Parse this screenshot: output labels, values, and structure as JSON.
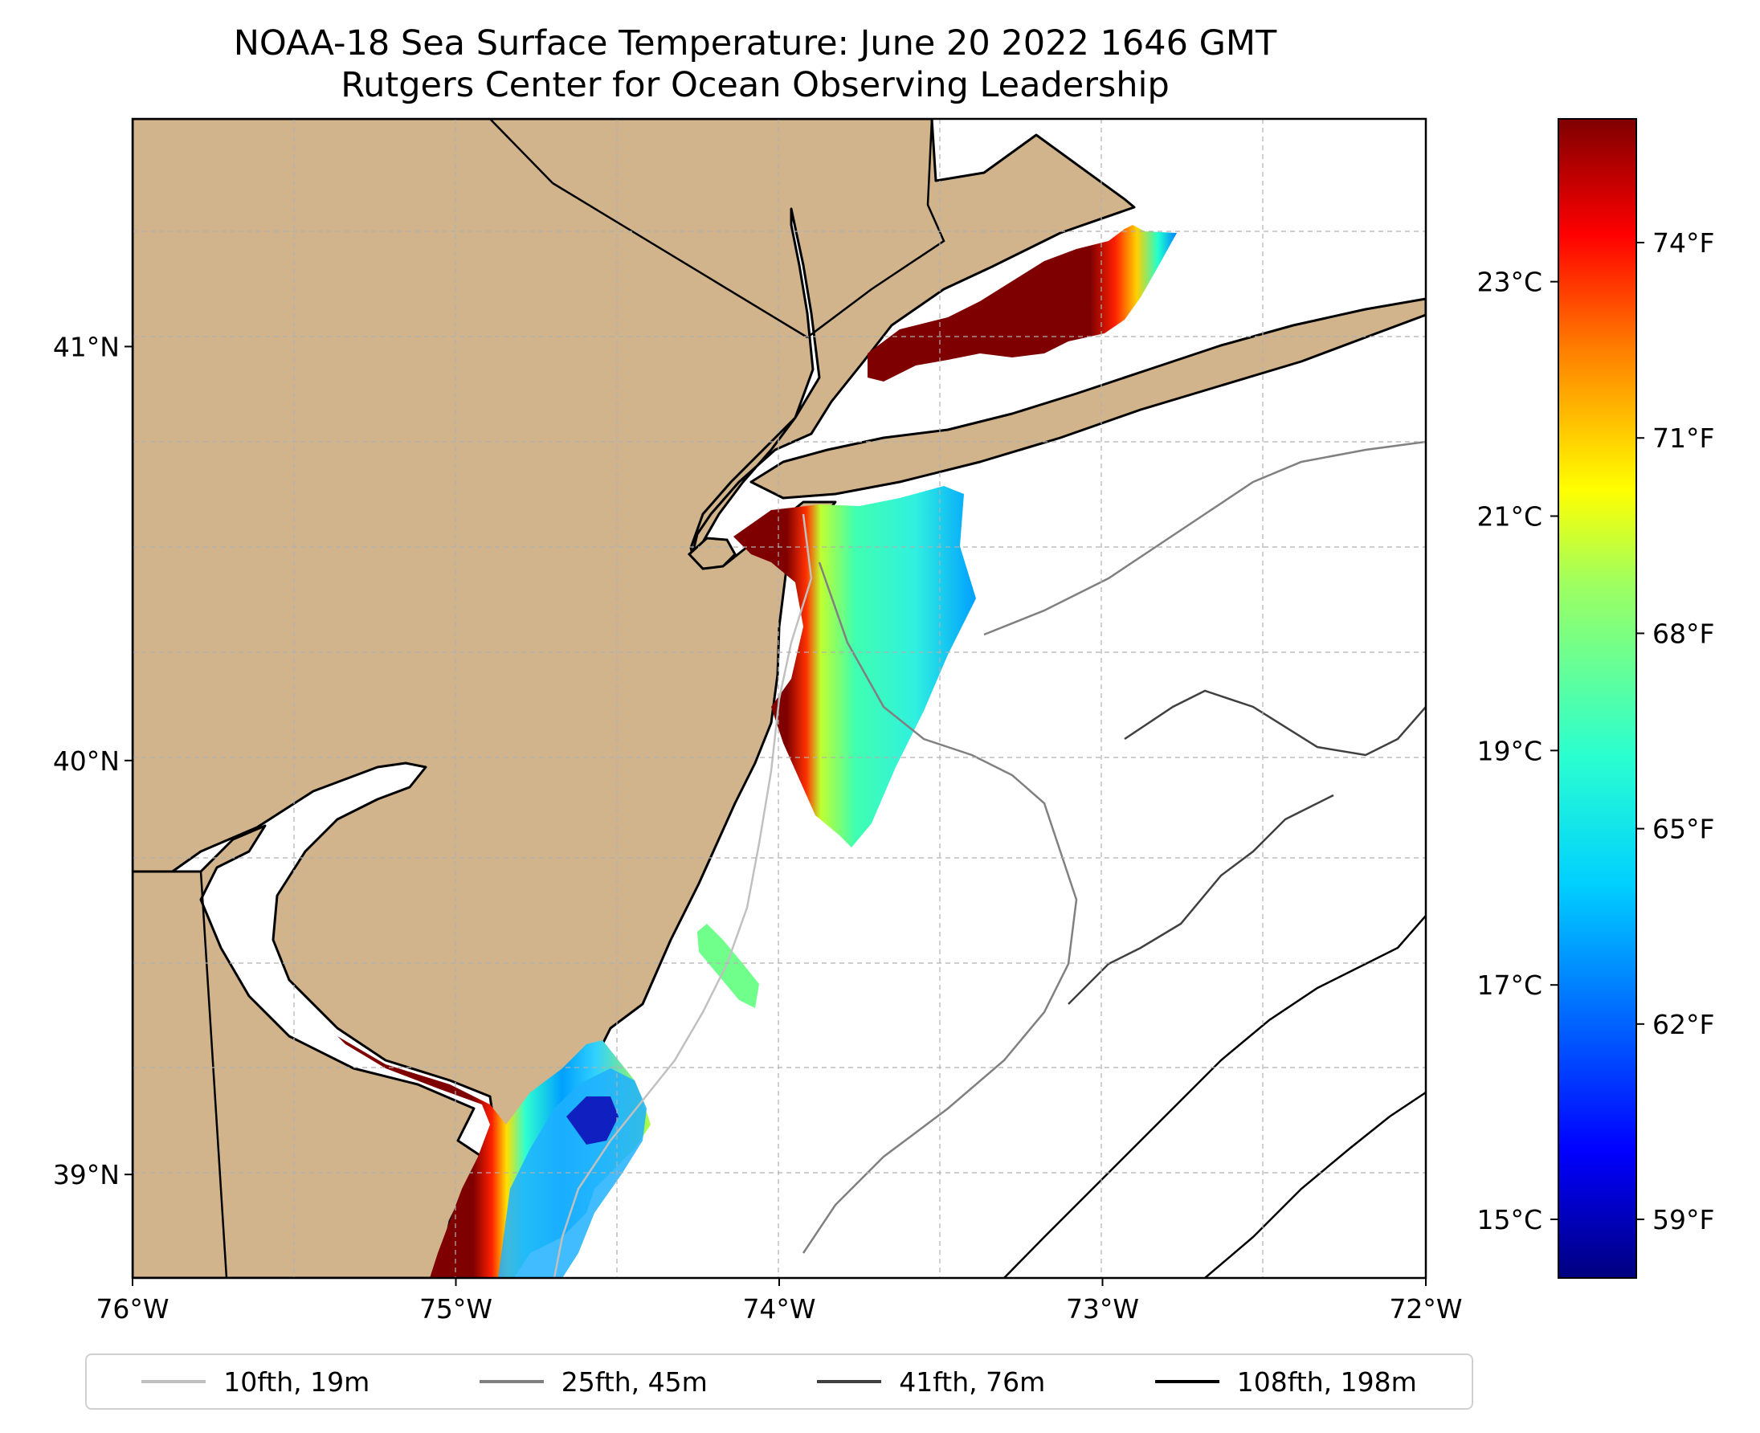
{
  "title": {
    "line1": "NOAA-18 Sea Surface Temperature: June 20 2022 1646 GMT",
    "line2": "Rutgers Center for Ocean Observing Leadership"
  },
  "map": {
    "lon_range": [
      -76,
      -72
    ],
    "lat_range": [
      38.75,
      41.55
    ],
    "lon_ticks": [
      {
        "value": -76,
        "label": "76°W"
      },
      {
        "value": -75,
        "label": "75°W"
      },
      {
        "value": -74,
        "label": "74°W"
      },
      {
        "value": -73,
        "label": "73°W"
      },
      {
        "value": -72,
        "label": "72°W"
      }
    ],
    "lat_ticks": [
      {
        "value": 39,
        "label": "39°N"
      },
      {
        "value": 40,
        "label": "40°N"
      },
      {
        "value": 41,
        "label": "41°N"
      }
    ],
    "land_color": "#d2b48c",
    "water_color": "#ffffff"
  },
  "colorbar": {
    "celsius_ticks": [
      {
        "value": 15,
        "label": "15°C"
      },
      {
        "value": 17,
        "label": "17°C"
      },
      {
        "value": 19,
        "label": "19°C"
      },
      {
        "value": 21,
        "label": "21°C"
      },
      {
        "value": 23,
        "label": "23°C"
      }
    ],
    "fahrenheit_ticks": [
      {
        "value": 59,
        "label": "59°F"
      },
      {
        "value": 62,
        "label": "62°F"
      },
      {
        "value": 65,
        "label": "65°F"
      },
      {
        "value": 68,
        "label": "68°F"
      },
      {
        "value": 71,
        "label": "71°F"
      },
      {
        "value": 74,
        "label": "74°F"
      }
    ],
    "range_f": [
      58.1,
      75.9
    ],
    "colors": [
      "#00007f",
      "#0000ff",
      "#007fff",
      "#00ffff",
      "#7fff7f",
      "#ffff00",
      "#ff7f00",
      "#ff0000",
      "#7f0000"
    ]
  },
  "legend": {
    "items": [
      {
        "label": "10fth, 19m",
        "color": "#c0c0c0"
      },
      {
        "label": "25fth, 45m",
        "color": "#808080"
      },
      {
        "label": "41fth, 76m",
        "color": "#404040"
      },
      {
        "label": "108fth, 198m",
        "color": "#000000"
      }
    ]
  }
}
